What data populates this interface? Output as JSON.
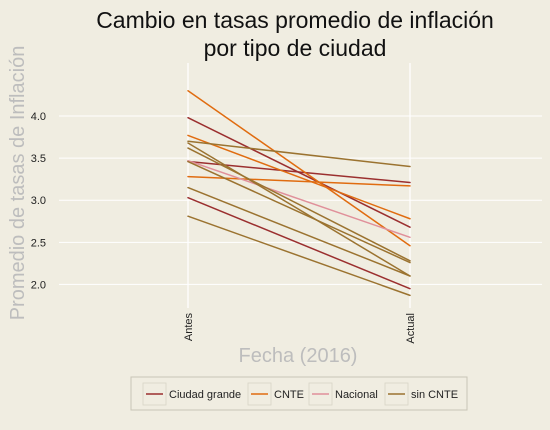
{
  "chart_data": {
    "type": "line",
    "title_lines": [
      "Cambio en tasas promedio de inflación",
      "por tipo de ciudad"
    ],
    "xlabel": "Fecha (2016)",
    "ylabel": "Promedio de tasas de Inflación",
    "categories": [
      "Antes",
      "Actual"
    ],
    "ylim": [
      1.72,
      4.63
    ],
    "yticks": [
      2.0,
      2.5,
      3.0,
      3.5,
      4.0
    ],
    "ytick_labels": [
      "2.0",
      "2.5",
      "3.0",
      "3.5",
      "4.0"
    ],
    "grid": true,
    "legend_position": "bottom",
    "legend": [
      {
        "label": "Ciudad grande",
        "color": "#9b2f2f"
      },
      {
        "label": "CNTE",
        "color": "#e06c10"
      },
      {
        "label": "Nacional",
        "color": "#e0909a"
      },
      {
        "label": "sin CNTE",
        "color": "#9b7330"
      }
    ],
    "series": [
      {
        "group": "Ciudad grande",
        "color": "#9b2f2f",
        "values": [
          3.98,
          2.68
        ]
      },
      {
        "group": "Ciudad grande",
        "color": "#9b2f2f",
        "values": [
          3.46,
          3.21
        ]
      },
      {
        "group": "Ciudad grande",
        "color": "#9b2f2f",
        "values": [
          3.03,
          1.95
        ]
      },
      {
        "group": "CNTE",
        "color": "#e06c10",
        "values": [
          4.3,
          2.46
        ]
      },
      {
        "group": "CNTE",
        "color": "#e06c10",
        "values": [
          3.77,
          2.78
        ]
      },
      {
        "group": "CNTE",
        "color": "#e06c10",
        "values": [
          3.28,
          3.17
        ]
      },
      {
        "group": "Nacional",
        "color": "#e0909a",
        "values": [
          3.47,
          2.56
        ]
      },
      {
        "group": "sin CNTE",
        "color": "#9b7330",
        "values": [
          3.7,
          3.4
        ]
      },
      {
        "group": "sin CNTE",
        "color": "#9b7330",
        "values": [
          3.68,
          2.1
        ]
      },
      {
        "group": "sin CNTE",
        "color": "#9b7330",
        "values": [
          3.62,
          2.28
        ]
      },
      {
        "group": "sin CNTE",
        "color": "#9b7330",
        "values": [
          3.46,
          2.26
        ]
      },
      {
        "group": "sin CNTE",
        "color": "#9b7330",
        "values": [
          3.15,
          2.1
        ]
      },
      {
        "group": "sin CNTE",
        "color": "#9b7330",
        "values": [
          2.81,
          1.87
        ]
      }
    ]
  }
}
